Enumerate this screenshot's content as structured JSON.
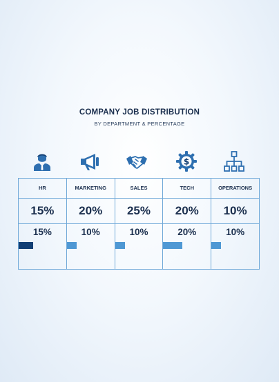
{
  "header": {
    "title": "COMPANY JOB DISTRIBUTION",
    "subtitle": "BY DEPARTMENT & PERCENTAGE"
  },
  "chart_data": {
    "type": "table",
    "title": "COMPANY JOB DISTRIBUTION",
    "subtitle": "BY DEPARTMENT & PERCENTAGE",
    "categories": [
      "HR",
      "MARKETING",
      "SALES",
      "TECH",
      "OPERATIONS"
    ],
    "icons": [
      "person-icon",
      "megaphone-icon",
      "handshake-icon",
      "dollar-gear-icon",
      "org-chart-icon"
    ],
    "main_values": [
      "15%",
      "20%",
      "25%",
      "20%",
      "10%"
    ],
    "sub_values": [
      "15%",
      "10%",
      "10%",
      "20%",
      "10%"
    ],
    "bar_values": [
      15,
      10,
      10,
      20,
      10
    ],
    "bar_max": 50,
    "bar_colors": [
      "#123f74",
      "#4f98d4",
      "#4f98d4",
      "#4f98d4",
      "#4f98d4"
    ],
    "icon_color": "#2e6fb0",
    "grid_color": "#6fa8d8"
  }
}
